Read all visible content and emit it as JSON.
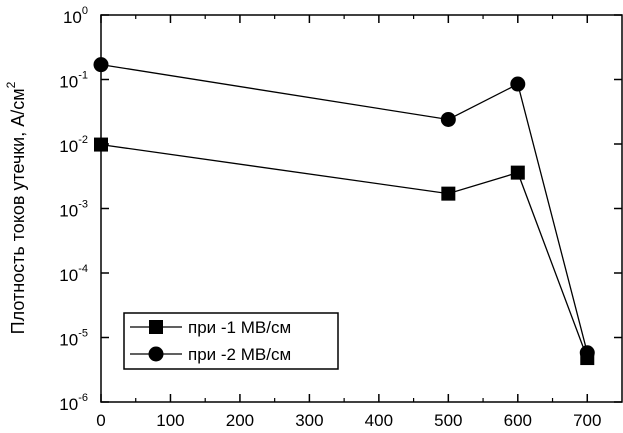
{
  "chart_data": {
    "type": "line",
    "yscale": "log",
    "xlim": [
      0,
      750
    ],
    "ylim": [
      1e-06,
      1
    ],
    "x_ticks": [
      0,
      100,
      200,
      300,
      400,
      500,
      600,
      700
    ],
    "y_ticks": [
      {
        "base": "10",
        "exp": "0",
        "value": 1
      },
      {
        "base": "10",
        "exp": "-1",
        "value": 0.1
      },
      {
        "base": "10",
        "exp": "-2",
        "value": 0.01
      },
      {
        "base": "10",
        "exp": "-3",
        "value": 0.001
      },
      {
        "base": "10",
        "exp": "-4",
        "value": 0.0001
      },
      {
        "base": "10",
        "exp": "-5",
        "value": 1e-05
      },
      {
        "base": "10",
        "exp": "-6",
        "value": 1e-06
      }
    ],
    "ylabel": "Плотность токов утечки, А/см",
    "ylabel_sup": "2",
    "xlabel": "",
    "title": "",
    "grid": false,
    "legend_position": "bottom-left",
    "series": [
      {
        "name": "при -1 МВ/см",
        "marker": "square",
        "color": "#000000",
        "x": [
          0,
          500,
          600,
          700
        ],
        "y": [
          0.0098,
          0.0017,
          0.0036,
          4.8e-06
        ]
      },
      {
        "name": "при -2 МВ/см",
        "marker": "circle",
        "color": "#000000",
        "x": [
          0,
          500,
          600,
          700
        ],
        "y": [
          0.17,
          0.024,
          0.085,
          5.8e-06
        ]
      }
    ]
  }
}
